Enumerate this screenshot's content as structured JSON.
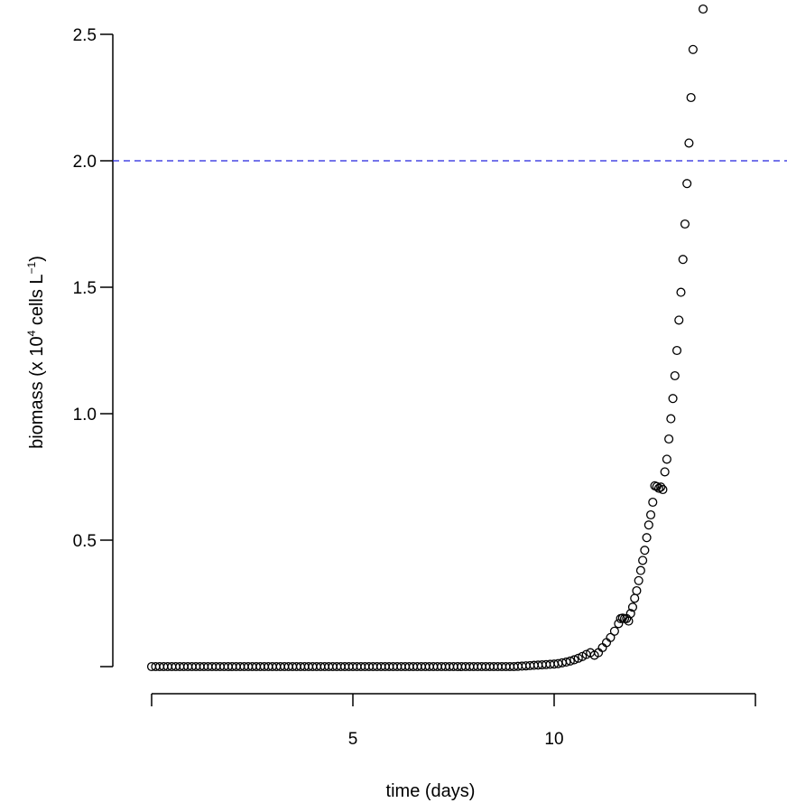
{
  "chart_data": {
    "type": "scatter",
    "title": "",
    "xlabel": "time (days)",
    "ylabel": "biomass (x 10",
    "ylabel_sup_exp": "4",
    "ylabel_mid": " cells L",
    "ylabel_sup_unit": "−1",
    "ylabel_end": ")",
    "xlim": [
      0,
      15
    ],
    "ylim": [
      0,
      2.5
    ],
    "x_ticks": [
      0,
      5,
      10,
      15
    ],
    "x_tick_labels": [
      "",
      "5",
      "10",
      ""
    ],
    "y_ticks": [
      0,
      0.5,
      1.0,
      1.5,
      2.0,
      2.5
    ],
    "y_tick_labels": [
      "",
      "0.5",
      "1.0",
      "1.5",
      "2.0",
      "2.5"
    ],
    "reference_line": {
      "y": 2.0,
      "color": "#2222dd",
      "style": "dashed"
    },
    "marker": {
      "shape": "open-circle",
      "color": "#000000"
    },
    "grid": false,
    "legend": "none",
    "series": [
      {
        "points": [
          [
            0.0,
            0.0
          ],
          [
            0.1,
            0.0
          ],
          [
            0.2,
            0.0
          ],
          [
            0.3,
            0.0
          ],
          [
            0.4,
            0.0
          ],
          [
            0.5,
            0.0
          ],
          [
            0.6,
            0.0
          ],
          [
            0.7,
            0.0
          ],
          [
            0.8,
            0.0
          ],
          [
            0.9,
            0.0
          ],
          [
            1.0,
            0.0
          ],
          [
            1.1,
            0.0
          ],
          [
            1.2,
            0.0
          ],
          [
            1.3,
            0.0
          ],
          [
            1.4,
            0.0
          ],
          [
            1.5,
            0.0
          ],
          [
            1.6,
            0.0
          ],
          [
            1.7,
            0.0
          ],
          [
            1.8,
            0.0
          ],
          [
            1.9,
            0.0
          ],
          [
            2.0,
            0.0
          ],
          [
            2.1,
            0.0
          ],
          [
            2.2,
            0.0
          ],
          [
            2.3,
            0.0
          ],
          [
            2.4,
            0.0
          ],
          [
            2.5,
            0.0
          ],
          [
            2.6,
            0.0
          ],
          [
            2.7,
            0.0
          ],
          [
            2.8,
            0.0
          ],
          [
            2.9,
            0.0
          ],
          [
            3.0,
            0.0
          ],
          [
            3.1,
            0.0
          ],
          [
            3.2,
            0.0
          ],
          [
            3.3,
            0.0
          ],
          [
            3.4,
            0.0
          ],
          [
            3.5,
            0.0
          ],
          [
            3.6,
            0.0
          ],
          [
            3.7,
            0.0
          ],
          [
            3.8,
            0.0
          ],
          [
            3.9,
            0.0
          ],
          [
            4.0,
            0.0
          ],
          [
            4.1,
            0.0
          ],
          [
            4.2,
            0.0
          ],
          [
            4.3,
            0.0
          ],
          [
            4.4,
            0.0
          ],
          [
            4.5,
            0.0
          ],
          [
            4.6,
            0.0
          ],
          [
            4.7,
            0.0
          ],
          [
            4.8,
            0.0
          ],
          [
            4.9,
            0.0
          ],
          [
            5.0,
            0.0
          ],
          [
            5.1,
            0.0
          ],
          [
            5.2,
            0.0
          ],
          [
            5.3,
            0.0
          ],
          [
            5.4,
            0.0
          ],
          [
            5.5,
            0.0
          ],
          [
            5.6,
            0.0
          ],
          [
            5.7,
            0.0
          ],
          [
            5.8,
            0.0
          ],
          [
            5.9,
            0.0
          ],
          [
            6.0,
            0.0
          ],
          [
            6.1,
            0.0
          ],
          [
            6.2,
            0.0
          ],
          [
            6.3,
            0.0
          ],
          [
            6.4,
            0.0
          ],
          [
            6.5,
            0.0
          ],
          [
            6.6,
            0.0
          ],
          [
            6.7,
            0.0
          ],
          [
            6.8,
            0.0
          ],
          [
            6.9,
            0.0
          ],
          [
            7.0,
            0.0
          ],
          [
            7.1,
            0.0
          ],
          [
            7.2,
            0.0
          ],
          [
            7.3,
            0.0
          ],
          [
            7.4,
            0.0
          ],
          [
            7.5,
            0.0
          ],
          [
            7.6,
            0.0
          ],
          [
            7.7,
            0.0
          ],
          [
            7.8,
            0.0
          ],
          [
            7.9,
            0.0
          ],
          [
            8.0,
            0.0
          ],
          [
            8.1,
            0.0
          ],
          [
            8.2,
            0.0
          ],
          [
            8.3,
            0.0
          ],
          [
            8.4,
            0.0
          ],
          [
            8.5,
            0.0
          ],
          [
            8.6,
            0.0
          ],
          [
            8.7,
            0.0
          ],
          [
            8.8,
            0.0
          ],
          [
            8.9,
            0.0
          ],
          [
            9.0,
            0.0
          ],
          [
            9.1,
            0.001
          ],
          [
            9.2,
            0.002
          ],
          [
            9.3,
            0.003
          ],
          [
            9.4,
            0.004
          ],
          [
            9.5,
            0.005
          ],
          [
            9.6,
            0.006
          ],
          [
            9.7,
            0.007
          ],
          [
            9.8,
            0.008
          ],
          [
            9.9,
            0.009
          ],
          [
            10.0,
            0.01
          ],
          [
            10.1,
            0.012
          ],
          [
            10.2,
            0.015
          ],
          [
            10.3,
            0.018
          ],
          [
            10.4,
            0.022
          ],
          [
            10.5,
            0.027
          ],
          [
            10.6,
            0.033
          ],
          [
            10.7,
            0.04
          ],
          [
            10.8,
            0.048
          ],
          [
            10.9,
            0.055
          ],
          [
            11.0,
            0.045
          ],
          [
            11.1,
            0.055
          ],
          [
            11.2,
            0.075
          ],
          [
            11.3,
            0.095
          ],
          [
            11.4,
            0.115
          ],
          [
            11.5,
            0.14
          ],
          [
            11.6,
            0.17
          ],
          [
            11.65,
            0.19
          ],
          [
            11.7,
            0.192
          ],
          [
            11.75,
            0.19
          ],
          [
            11.8,
            0.19
          ],
          [
            11.85,
            0.18
          ],
          [
            11.9,
            0.21
          ],
          [
            11.95,
            0.235
          ],
          [
            12.0,
            0.27
          ],
          [
            12.05,
            0.3
          ],
          [
            12.1,
            0.34
          ],
          [
            12.15,
            0.38
          ],
          [
            12.2,
            0.42
          ],
          [
            12.25,
            0.46
          ],
          [
            12.3,
            0.51
          ],
          [
            12.35,
            0.56
          ],
          [
            12.4,
            0.6
          ],
          [
            12.45,
            0.65
          ],
          [
            12.5,
            0.715
          ],
          [
            12.55,
            0.712
          ],
          [
            12.6,
            0.705
          ],
          [
            12.65,
            0.71
          ],
          [
            12.7,
            0.7
          ],
          [
            12.75,
            0.77
          ],
          [
            12.8,
            0.82
          ],
          [
            12.85,
            0.9
          ],
          [
            12.9,
            0.98
          ],
          [
            12.95,
            1.06
          ],
          [
            13.0,
            1.15
          ],
          [
            13.05,
            1.25
          ],
          [
            13.1,
            1.37
          ],
          [
            13.15,
            1.48
          ],
          [
            13.2,
            1.61
          ],
          [
            13.25,
            1.75
          ],
          [
            13.3,
            1.91
          ],
          [
            13.35,
            2.07
          ],
          [
            13.4,
            2.25
          ],
          [
            13.45,
            2.44
          ],
          [
            13.7,
            2.6
          ]
        ]
      }
    ]
  }
}
